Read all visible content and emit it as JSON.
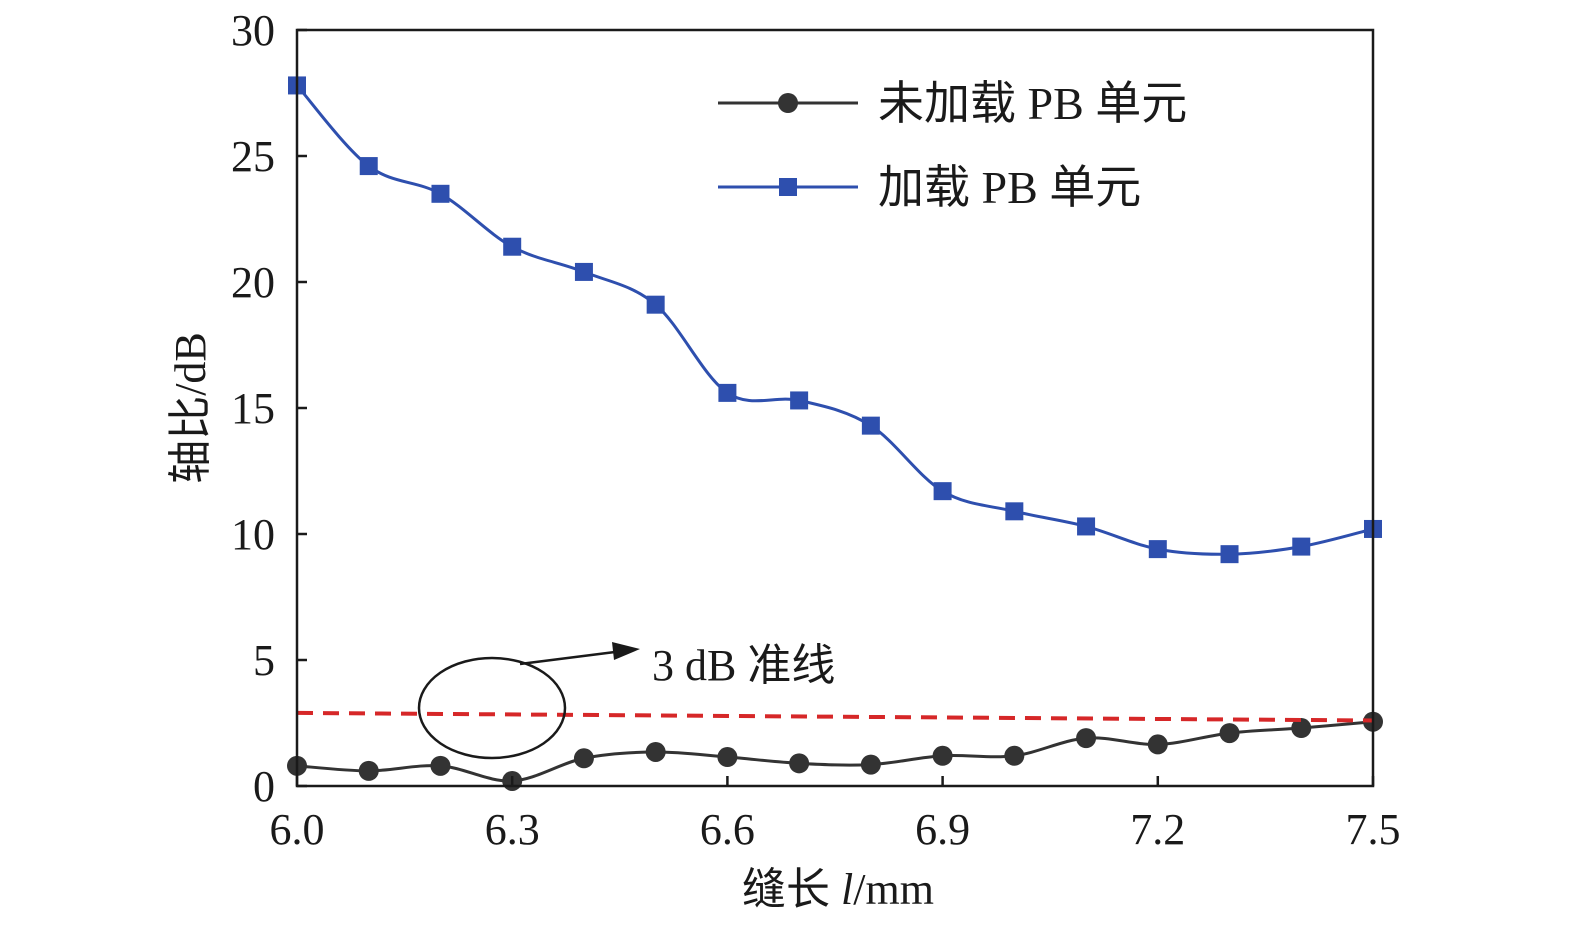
{
  "chart_data": {
    "type": "line",
    "xlabel_main": "缝长 ",
    "xlabel_var": "l",
    "xlabel_unit": "/mm",
    "ylabel": "轴比/dB",
    "xlim": [
      6.0,
      7.5
    ],
    "ylim": [
      0,
      30
    ],
    "x_ticks": [
      "6.0",
      "6.3",
      "6.6",
      "6.9",
      "7.2",
      "7.5"
    ],
    "y_ticks": [
      "0",
      "5",
      "10",
      "15",
      "20",
      "25",
      "30"
    ],
    "grid": false,
    "legend_position": "top-right",
    "x": [
      6.0,
      6.1,
      6.2,
      6.3,
      6.4,
      6.5,
      6.6,
      6.7,
      6.8,
      6.9,
      7.0,
      7.1,
      7.2,
      7.3,
      7.4,
      7.5
    ],
    "series": [
      {
        "name": "未加载 PB 单元",
        "marker": "circle",
        "color": "#333333",
        "values": [
          0.8,
          0.6,
          0.8,
          0.2,
          1.1,
          1.35,
          1.15,
          0.9,
          0.85,
          1.2,
          1.2,
          1.9,
          1.65,
          2.1,
          2.3,
          2.55
        ]
      },
      {
        "name": "加载 PB 单元",
        "marker": "square",
        "color": "#2e4fae",
        "values": [
          27.8,
          24.6,
          23.5,
          21.4,
          20.4,
          19.1,
          15.6,
          15.3,
          14.3,
          11.7,
          10.9,
          10.3,
          9.4,
          9.2,
          9.5,
          10.2
        ]
      }
    ],
    "reference_line": {
      "color": "#d62728",
      "y_start": 2.9,
      "y_end": 2.6
    },
    "annotation": {
      "label": "3 dB 准线"
    }
  }
}
